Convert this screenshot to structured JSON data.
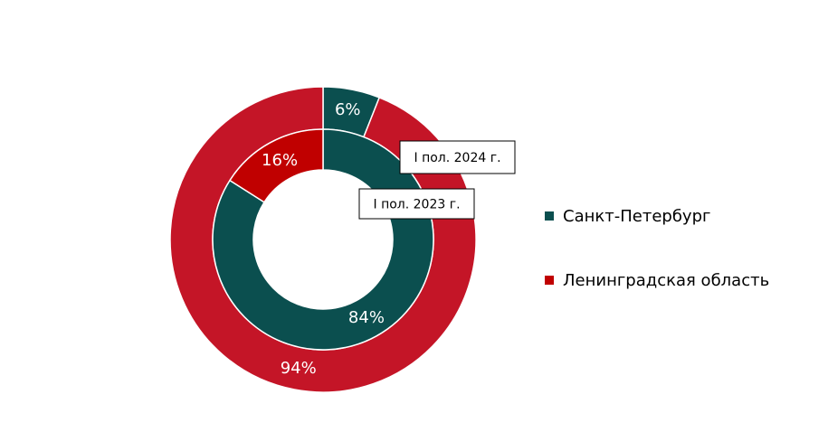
{
  "chart_data": {
    "type": "doughnut",
    "categories": [
      "Санкт-Петербург",
      "Ленинградская область"
    ],
    "legend_colors": [
      "#0b4f4f",
      "#c00000"
    ],
    "series": [
      {
        "name": "I пол. 2024 г.",
        "values": [
          6,
          94
        ],
        "value_labels": [
          "6%",
          "94%"
        ],
        "colors": [
          "#0b4f4f",
          "#c41527"
        ]
      },
      {
        "name": "I пол. 2023 г.",
        "values": [
          84,
          16
        ],
        "value_labels": [
          "84%",
          "16%"
        ],
        "colors": [
          "#0b4f4f",
          "#c00000"
        ]
      }
    ],
    "legend": "right"
  }
}
